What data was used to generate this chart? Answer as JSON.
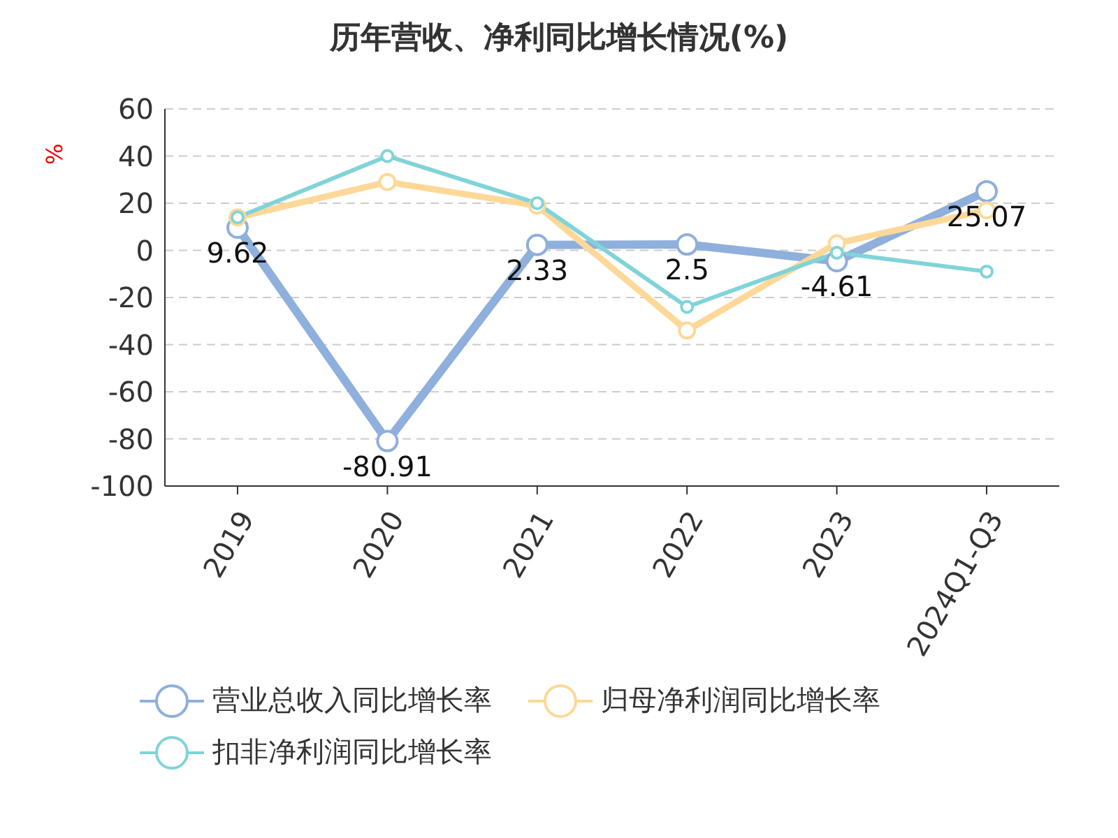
{
  "chart_data": {
    "type": "line",
    "title": "历年营收、净利同比增长情况(%)",
    "ylabel": "%",
    "categories": [
      "2019",
      "2020",
      "2021",
      "2022",
      "2023",
      "2024Q1-Q3"
    ],
    "series": [
      {
        "name": "营业总收入同比增长率",
        "color": "#8fafdc",
        "values": [
          9.62,
          -80.91,
          2.33,
          2.5,
          -4.61,
          25.07
        ],
        "value_labels": [
          "9.62",
          "-80.91",
          "2.33",
          "2.5",
          "-4.61",
          "25.07"
        ]
      },
      {
        "name": "归母净利润同比增长率",
        "color": "#fdd898",
        "values": [
          14,
          29,
          19,
          -34,
          3,
          17
        ]
      },
      {
        "name": "扣非净利润同比增长率",
        "color": "#80d4d8",
        "values": [
          14,
          40,
          20,
          -24,
          -1,
          -9
        ]
      }
    ],
    "ylim": [
      -100,
      60
    ],
    "yticks": [
      -100,
      -80,
      -60,
      -40,
      -20,
      0,
      20,
      40,
      60
    ],
    "grid": "y",
    "legend": "bottom",
    "marker": "circle",
    "line_style": "solid"
  }
}
